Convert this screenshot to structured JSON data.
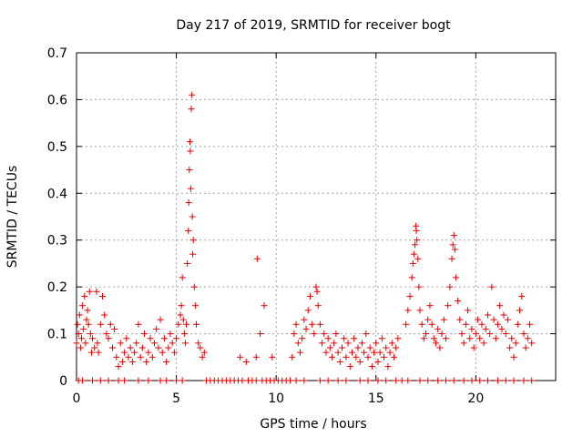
{
  "chart_data": {
    "type": "scatter",
    "title": "Day 217 of 2019, SRMTID for receiver bogt",
    "xlabel": "GPS time / hours",
    "ylabel": "SRMTID / TECUs",
    "xlim": [
      0,
      24
    ],
    "ylim": [
      0,
      0.7
    ],
    "xticks": [
      0,
      5,
      10,
      15,
      20
    ],
    "yticks": [
      0,
      0.1,
      0.2,
      0.3,
      0.4,
      0.5,
      0.6,
      0.7
    ],
    "xtick_labels": [
      "0",
      "5",
      "10",
      "15",
      "20"
    ],
    "ytick_labels": [
      "0",
      "0.1",
      "0.2",
      "0.3",
      "0.4",
      "0.5",
      "0.6",
      "0.7"
    ],
    "grid": true,
    "marker": "plus",
    "color": "#e00000",
    "series": [
      {
        "name": "bogt",
        "points": [
          [
            0.0,
            0.08
          ],
          [
            0.05,
            0.12
          ],
          [
            0.1,
            0.1
          ],
          [
            0.15,
            0.14
          ],
          [
            0.2,
            0.07
          ],
          [
            0.25,
            0.09
          ],
          [
            0.3,
            0.16
          ],
          [
            0.35,
            0.11
          ],
          [
            0.4,
            0.18
          ],
          [
            0.45,
            0.08
          ],
          [
            0.5,
            0.13
          ],
          [
            0.55,
            0.15
          ],
          [
            0.6,
            0.12
          ],
          [
            0.65,
            0.19
          ],
          [
            0.7,
            0.1
          ],
          [
            0.75,
            0.06
          ],
          [
            0.8,
            0.09
          ],
          [
            0.9,
            0.07
          ],
          [
            1.0,
            0.19
          ],
          [
            1.05,
            0.08
          ],
          [
            1.1,
            0.06
          ],
          [
            1.2,
            0.12
          ],
          [
            1.3,
            0.18
          ],
          [
            1.4,
            0.14
          ],
          [
            1.5,
            0.1
          ],
          [
            1.6,
            0.09
          ],
          [
            1.7,
            0.12
          ],
          [
            1.8,
            0.07
          ],
          [
            1.9,
            0.11
          ],
          [
            2.0,
            0.05
          ],
          [
            2.1,
            0.03
          ],
          [
            2.2,
            0.08
          ],
          [
            2.3,
            0.04
          ],
          [
            2.4,
            0.06
          ],
          [
            2.5,
            0.09
          ],
          [
            2.6,
            0.05
          ],
          [
            2.7,
            0.07
          ],
          [
            2.8,
            0.04
          ],
          [
            2.9,
            0.06
          ],
          [
            3.0,
            0.08
          ],
          [
            3.1,
            0.12
          ],
          [
            3.2,
            0.05
          ],
          [
            3.3,
            0.07
          ],
          [
            3.4,
            0.1
          ],
          [
            3.5,
            0.04
          ],
          [
            3.6,
            0.06
          ],
          [
            3.7,
            0.09
          ],
          [
            3.8,
            0.05
          ],
          [
            3.9,
            0.08
          ],
          [
            4.0,
            0.11
          ],
          [
            4.1,
            0.07
          ],
          [
            4.2,
            0.13
          ],
          [
            4.3,
            0.06
          ],
          [
            4.4,
            0.09
          ],
          [
            4.5,
            0.04
          ],
          [
            4.6,
            0.07
          ],
          [
            4.7,
            0.1
          ],
          [
            4.8,
            0.08
          ],
          [
            4.9,
            0.06
          ],
          [
            5.0,
            0.09
          ],
          [
            5.1,
            0.12
          ],
          [
            5.2,
            0.14
          ],
          [
            5.25,
            0.16
          ],
          [
            5.3,
            0.22
          ],
          [
            5.35,
            0.13
          ],
          [
            5.4,
            0.1
          ],
          [
            5.45,
            0.08
          ],
          [
            5.5,
            0.12
          ],
          [
            5.55,
            0.25
          ],
          [
            5.6,
            0.32
          ],
          [
            5.62,
            0.38
          ],
          [
            5.65,
            0.45
          ],
          [
            5.68,
            0.51
          ],
          [
            5.7,
            0.49
          ],
          [
            5.72,
            0.41
          ],
          [
            5.75,
            0.58
          ],
          [
            5.78,
            0.61
          ],
          [
            5.8,
            0.35
          ],
          [
            5.82,
            0.27
          ],
          [
            5.85,
            0.3
          ],
          [
            5.9,
            0.2
          ],
          [
            5.95,
            0.16
          ],
          [
            6.0,
            0.12
          ],
          [
            6.1,
            0.08
          ],
          [
            6.2,
            0.07
          ],
          [
            6.3,
            0.05
          ],
          [
            6.4,
            0.06
          ],
          [
            8.2,
            0.05
          ],
          [
            8.5,
            0.04
          ],
          [
            9.0,
            0.05
          ],
          [
            9.05,
            0.26
          ],
          [
            9.2,
            0.1
          ],
          [
            9.4,
            0.16
          ],
          [
            9.8,
            0.05
          ],
          [
            10.8,
            0.05
          ],
          [
            10.9,
            0.1
          ],
          [
            11.0,
            0.12
          ],
          [
            11.1,
            0.08
          ],
          [
            11.2,
            0.06
          ],
          [
            11.3,
            0.09
          ],
          [
            11.4,
            0.13
          ],
          [
            11.5,
            0.11
          ],
          [
            11.6,
            0.15
          ],
          [
            11.7,
            0.18
          ],
          [
            11.8,
            0.12
          ],
          [
            11.9,
            0.1
          ],
          [
            12.0,
            0.2
          ],
          [
            12.05,
            0.19
          ],
          [
            12.1,
            0.16
          ],
          [
            12.2,
            0.12
          ],
          [
            12.3,
            0.08
          ],
          [
            12.4,
            0.1
          ],
          [
            12.5,
            0.06
          ],
          [
            12.6,
            0.09
          ],
          [
            12.7,
            0.07
          ],
          [
            12.8,
            0.05
          ],
          [
            12.9,
            0.08
          ],
          [
            13.0,
            0.1
          ],
          [
            13.1,
            0.06
          ],
          [
            13.2,
            0.04
          ],
          [
            13.3,
            0.07
          ],
          [
            13.4,
            0.09
          ],
          [
            13.5,
            0.05
          ],
          [
            13.6,
            0.08
          ],
          [
            13.7,
            0.03
          ],
          [
            13.8,
            0.06
          ],
          [
            13.9,
            0.09
          ],
          [
            14.0,
            0.05
          ],
          [
            14.1,
            0.07
          ],
          [
            14.2,
            0.04
          ],
          [
            14.3,
            0.08
          ],
          [
            14.4,
            0.06
          ],
          [
            14.5,
            0.1
          ],
          [
            14.6,
            0.05
          ],
          [
            14.7,
            0.07
          ],
          [
            14.8,
            0.03
          ],
          [
            14.9,
            0.06
          ],
          [
            15.0,
            0.08
          ],
          [
            15.1,
            0.04
          ],
          [
            15.2,
            0.06
          ],
          [
            15.3,
            0.09
          ],
          [
            15.4,
            0.05
          ],
          [
            15.5,
            0.07
          ],
          [
            15.6,
            0.03
          ],
          [
            15.7,
            0.06
          ],
          [
            15.8,
            0.08
          ],
          [
            15.9,
            0.05
          ],
          [
            16.0,
            0.07
          ],
          [
            16.1,
            0.09
          ],
          [
            16.5,
            0.12
          ],
          [
            16.6,
            0.15
          ],
          [
            16.7,
            0.18
          ],
          [
            16.8,
            0.22
          ],
          [
            16.85,
            0.25
          ],
          [
            16.9,
            0.27
          ],
          [
            16.95,
            0.29
          ],
          [
            17.0,
            0.33
          ],
          [
            17.02,
            0.32
          ],
          [
            17.05,
            0.3
          ],
          [
            17.1,
            0.26
          ],
          [
            17.15,
            0.2
          ],
          [
            17.2,
            0.15
          ],
          [
            17.3,
            0.12
          ],
          [
            17.4,
            0.09
          ],
          [
            17.5,
            0.1
          ],
          [
            17.6,
            0.13
          ],
          [
            17.7,
            0.16
          ],
          [
            17.8,
            0.12
          ],
          [
            17.9,
            0.09
          ],
          [
            18.0,
            0.08
          ],
          [
            18.1,
            0.11
          ],
          [
            18.2,
            0.07
          ],
          [
            18.3,
            0.1
          ],
          [
            18.4,
            0.13
          ],
          [
            18.5,
            0.09
          ],
          [
            18.6,
            0.16
          ],
          [
            18.7,
            0.2
          ],
          [
            18.8,
            0.26
          ],
          [
            18.85,
            0.29
          ],
          [
            18.9,
            0.31
          ],
          [
            18.95,
            0.28
          ],
          [
            19.0,
            0.22
          ],
          [
            19.1,
            0.17
          ],
          [
            19.2,
            0.13
          ],
          [
            19.3,
            0.1
          ],
          [
            19.4,
            0.08
          ],
          [
            19.5,
            0.12
          ],
          [
            19.6,
            0.15
          ],
          [
            19.7,
            0.09
          ],
          [
            19.8,
            0.11
          ],
          [
            19.9,
            0.07
          ],
          [
            20.0,
            0.1
          ],
          [
            20.1,
            0.13
          ],
          [
            20.2,
            0.09
          ],
          [
            20.3,
            0.12
          ],
          [
            20.4,
            0.08
          ],
          [
            20.5,
            0.11
          ],
          [
            20.6,
            0.14
          ],
          [
            20.7,
            0.1
          ],
          [
            20.8,
            0.2
          ],
          [
            20.9,
            0.13
          ],
          [
            21.0,
            0.09
          ],
          [
            21.1,
            0.12
          ],
          [
            21.2,
            0.16
          ],
          [
            21.3,
            0.11
          ],
          [
            21.4,
            0.14
          ],
          [
            21.5,
            0.1
          ],
          [
            21.6,
            0.13
          ],
          [
            21.7,
            0.07
          ],
          [
            21.8,
            0.09
          ],
          [
            21.9,
            0.05
          ],
          [
            22.0,
            0.08
          ],
          [
            22.1,
            0.12
          ],
          [
            22.2,
            0.15
          ],
          [
            22.3,
            0.18
          ],
          [
            22.4,
            0.1
          ],
          [
            22.5,
            0.07
          ],
          [
            22.6,
            0.09
          ],
          [
            22.7,
            0.12
          ],
          [
            22.8,
            0.08
          ],
          [
            0.1,
            0.0
          ],
          [
            0.3,
            0.0
          ],
          [
            0.8,
            0.0
          ],
          [
            1.2,
            0.0
          ],
          [
            1.6,
            0.0
          ],
          [
            2.1,
            0.0
          ],
          [
            2.4,
            0.0
          ],
          [
            3.1,
            0.0
          ],
          [
            3.6,
            0.0
          ],
          [
            4.2,
            0.0
          ],
          [
            4.5,
            0.0
          ],
          [
            5.0,
            0.0
          ],
          [
            5.3,
            0.0
          ],
          [
            6.5,
            0.0
          ],
          [
            6.7,
            0.0
          ],
          [
            6.9,
            0.0
          ],
          [
            7.1,
            0.0
          ],
          [
            7.3,
            0.0
          ],
          [
            7.5,
            0.0
          ],
          [
            7.7,
            0.0
          ],
          [
            7.9,
            0.0
          ],
          [
            8.1,
            0.0
          ],
          [
            8.3,
            0.0
          ],
          [
            8.6,
            0.0
          ],
          [
            8.8,
            0.0
          ],
          [
            9.0,
            0.0
          ],
          [
            9.3,
            0.0
          ],
          [
            9.5,
            0.0
          ],
          [
            9.7,
            0.0
          ],
          [
            9.9,
            0.0
          ],
          [
            10.1,
            0.0
          ],
          [
            10.3,
            0.0
          ],
          [
            10.5,
            0.0
          ],
          [
            10.7,
            0.0
          ],
          [
            11.0,
            0.0
          ],
          [
            11.4,
            0.0
          ],
          [
            12.2,
            0.0
          ],
          [
            12.6,
            0.0
          ],
          [
            13.1,
            0.0
          ],
          [
            13.5,
            0.0
          ],
          [
            14.2,
            0.0
          ],
          [
            14.6,
            0.0
          ],
          [
            15.1,
            0.0
          ],
          [
            15.5,
            0.0
          ],
          [
            16.0,
            0.0
          ],
          [
            16.3,
            0.0
          ],
          [
            16.6,
            0.0
          ],
          [
            17.2,
            0.0
          ],
          [
            17.6,
            0.0
          ],
          [
            18.1,
            0.0
          ],
          [
            18.5,
            0.0
          ],
          [
            18.9,
            0.0
          ],
          [
            19.4,
            0.0
          ],
          [
            19.8,
            0.0
          ],
          [
            20.2,
            0.0
          ],
          [
            20.6,
            0.0
          ],
          [
            21.1,
            0.0
          ],
          [
            21.5,
            0.0
          ],
          [
            21.9,
            0.0
          ],
          [
            22.4,
            0.0
          ],
          [
            22.8,
            0.0
          ]
        ]
      }
    ]
  }
}
